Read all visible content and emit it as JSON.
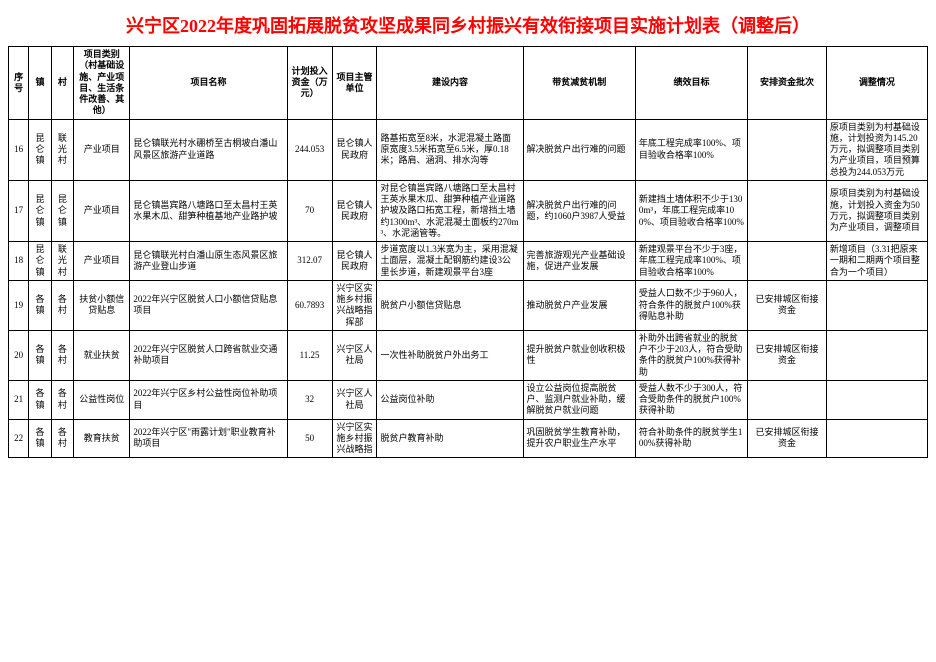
{
  "title": "兴宁区2022年度巩固拓展脱贫攻坚成果同乡村振兴有效衔接项目实施计划表（调整后）",
  "headers": {
    "seq": "序号",
    "town": "镇",
    "village": "村",
    "category": "项目类别（村基础设施、产业项目、生活条件改善、其他）",
    "name": "项目名称",
    "fund": "计划投入资金（万元）",
    "dept": "项目主管单位",
    "content": "建设内容",
    "mechanism": "带贫减贫机制",
    "goal": "绩效目标",
    "batch": "安排资金批次",
    "adjust": "调整情况"
  },
  "rows": [
    {
      "seq": "16",
      "town": "昆仑镇",
      "village": "联光村",
      "category": "产业项目",
      "name": "昆仑镇联光村水硼桥至古桐坡白潘山风景区旅游产业道路",
      "fund": "244.053",
      "dept": "昆仑镇人民政府",
      "content": "路基拓宽至8米，水泥混凝土路面原宽度3.5米拓宽至6.5米，厚0.18米；路肩、涵洞、排水沟等",
      "mechanism": "解决脱贫户出行难的问题",
      "goal": "年底工程完成率100%、项目验收合格率100%",
      "batch": "",
      "adjust": "原项目类别为村基础设施，计划投资为145.20万元，拟调整项目类别为产业项目，项目预算总投为244.053万元"
    },
    {
      "seq": "17",
      "town": "昆仑镇",
      "village": "昆仑镇",
      "category": "产业项目",
      "name": "昆仑镇邕宾路八塘路口至太昌村王英水果木瓜、甜笋种植基地产业路护坡",
      "fund": "70",
      "dept": "昆仑镇人民政府",
      "content": "对昆仑镇邕宾路八塘路口至太昌村王英水果木瓜、甜笋种植产业道路护坡及路口拓宽工程，新增挡土墙约1300m³、水泥混凝土面板约270m³、水泥涵管等。",
      "mechanism": "解决脱贫户出行难的问题，约1060户3987人受益",
      "goal": "新建挡土墙体积不少于1300m³，年底工程完成率100%、项目验收合格率100%",
      "batch": "",
      "adjust": "原项目类别为村基础设施，计划投入资金为50万元，拟调整项目类别为产业项目，调整项目"
    },
    {
      "seq": "18",
      "town": "昆仑镇",
      "village": "联光村",
      "category": "产业项目",
      "name": "昆仑镇联光村白潘山原生态风景区旅游产业登山步道",
      "fund": "312.07",
      "dept": "昆仑镇人民政府",
      "content": "步道宽度以1.3米宽为主，采用混凝土面层，混凝土配钢筋约建设3公里长步道，新建观景平台3座",
      "mechanism": "完善旅游观光产业基础设施，促进产业发展",
      "goal": "新建观景平台不少于3座，年底工程完成率100%、项目验收合格率100%",
      "batch": "",
      "adjust": "新增项目（3.31把原来一期和二期两个项目整合为一个项目）"
    },
    {
      "seq": "19",
      "town": "各镇",
      "village": "各村",
      "category": "扶贫小额信贷贴息",
      "name": "2022年兴宁区脱贫人口小额信贷贴息项目",
      "fund": "60.7893",
      "dept": "兴宁区实施乡村振兴战略指挥部",
      "content": "脱贫户小额信贷贴息",
      "mechanism": "推动脱贫户产业发展",
      "goal": "受益人口数不少于960人，符合条件的脱贫户100%获得贴息补助",
      "batch": "已安排城区衔接资金",
      "adjust": ""
    },
    {
      "seq": "20",
      "town": "各镇",
      "village": "各村",
      "category": "就业扶贫",
      "name": "2022年兴宁区脱贫人口跨省就业交通补助项目",
      "fund": "11.25",
      "dept": "兴宁区人社局",
      "content": "一次性补助脱贫户外出务工",
      "mechanism": "提升脱贫户就业创收积极性",
      "goal": "补助外出跨省就业的脱贫户不少于203人，符合受助条件的脱贫户100%获得补助",
      "batch": "已安排城区衔接资金",
      "adjust": ""
    },
    {
      "seq": "21",
      "town": "各镇",
      "village": "各村",
      "category": "公益性岗位",
      "name": "2022年兴宁区乡村公益性岗位补助项目",
      "fund": "32",
      "dept": "兴宁区人社局",
      "content": "公益岗位补助",
      "mechanism": "设立公益岗位提高脱贫户、监测户就业补助，缓解脱贫户就业问题",
      "goal": "受益人数不少于300人，符合受助条件的脱贫户100%获得补助",
      "batch": "",
      "adjust": ""
    },
    {
      "seq": "22",
      "town": "各镇",
      "village": "各村",
      "category": "教育扶贫",
      "name": "2022年兴宁区\"雨露计划\"职业教育补助项目",
      "fund": "50",
      "dept": "兴宁区实施乡村振兴战略指",
      "content": "脱贫户教育补助",
      "mechanism": "巩固脱贫学生教育补助，提升农户职业生产水平",
      "goal": "符合补助条件的脱贫学生100%获得补助",
      "batch": "已安排城区衔接资金",
      "adjust": ""
    }
  ]
}
